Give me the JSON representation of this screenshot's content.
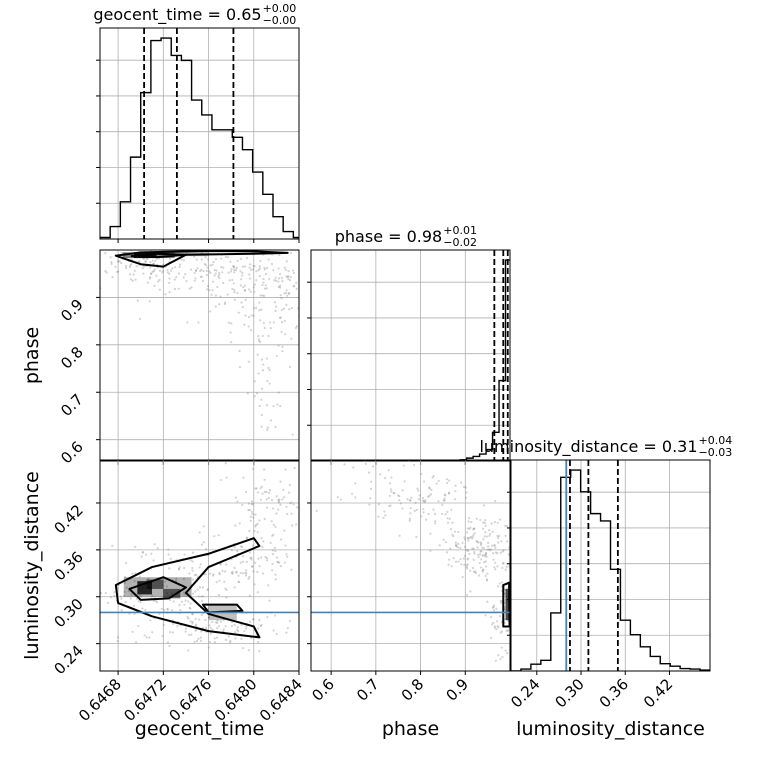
{
  "chart_data": {
    "type": "corner",
    "params": [
      "geocent_time",
      "phase",
      "luminosity_distance"
    ],
    "axis_labels": {
      "geocent_time": "geocent_time",
      "phase": "phase",
      "luminosity_distance": "luminosity_distance"
    },
    "ranges": {
      "geocent_time": [
        0.64664,
        0.6484
      ],
      "phase": [
        0.555,
        1.0
      ],
      "luminosity_distance": [
        0.205,
        0.475
      ]
    },
    "ticks": {
      "geocent_time": [
        0.6468,
        0.6472,
        0.6476,
        0.648,
        0.6484
      ],
      "phase": [
        0.6,
        0.7,
        0.8,
        0.9
      ],
      "luminosity_distance": [
        0.24,
        0.3,
        0.36,
        0.42
      ]
    },
    "tick_labels": {
      "geocent_time": [
        "0.6468",
        "0.6472",
        "0.6476",
        "0.6480",
        "0.6484"
      ],
      "phase": [
        "0.6",
        "0.7",
        "0.8",
        "0.9"
      ],
      "luminosity_distance": [
        "0.24",
        "0.30",
        "0.36",
        "0.42"
      ]
    },
    "titles": [
      {
        "param": "geocent_time",
        "name": "geocent_time",
        "value": "0.65",
        "plus": "+0.00",
        "minus": "−0.00"
      },
      {
        "param": "phase",
        "name": "phase",
        "value": "0.98",
        "plus": "+0.01",
        "minus": "−0.02"
      },
      {
        "param": "luminosity_distance",
        "name": "luminosity_distance",
        "value": "0.31",
        "plus": "+0.04",
        "minus": "−0.03"
      }
    ],
    "quantiles": {
      "geocent_time": [
        0.64703,
        0.64732,
        0.64782
      ],
      "phase": [
        0.965,
        0.985,
        0.995
      ],
      "luminosity_distance": [
        0.285,
        0.31,
        0.35
      ]
    },
    "truth": {
      "luminosity_distance": 0.28
    },
    "histograms": {
      "geocent_time": {
        "edges": [
          0.64664,
          0.64673,
          0.64682,
          0.64691,
          0.647,
          0.64709,
          0.64718,
          0.64727,
          0.64736,
          0.64745,
          0.64754,
          0.64763,
          0.64772,
          0.64781,
          0.6479,
          0.64799,
          0.64808,
          0.64817,
          0.64826,
          0.64835,
          0.64844
        ],
        "counts": [
          0.3,
          2.5,
          7.5,
          16.5,
          29.5,
          40.0,
          40.5,
          37.0,
          36.0,
          28.0,
          25.0,
          22.0,
          22.0,
          20.5,
          18.0,
          13.5,
          9.0,
          4.5,
          1.5,
          0.3
        ]
      },
      "phase": {
        "edges": [
          0.555,
          0.5695,
          0.584,
          0.5985,
          0.613,
          0.6275,
          0.642,
          0.6565,
          0.671,
          0.6855,
          0.7,
          0.7145,
          0.729,
          0.7435,
          0.758,
          0.7725,
          0.787,
          0.8015,
          0.816,
          0.8305,
          0.845,
          0.8595,
          0.874,
          0.8885,
          0.903,
          0.9175,
          0.932,
          0.9465,
          0.961,
          0.9755,
          0.99,
          1.0
        ],
        "counts": [
          0,
          0,
          0,
          0,
          0,
          0,
          0,
          0,
          0,
          0,
          0,
          0,
          0,
          0,
          0,
          0,
          0,
          0,
          0,
          0,
          0,
          0,
          0,
          0.2,
          0.5,
          0.8,
          1.2,
          2.0,
          5.0,
          14.0,
          35.0
        ]
      },
      "luminosity_distance": {
        "edges": [
          0.205,
          0.2185,
          0.232,
          0.2455,
          0.259,
          0.2725,
          0.286,
          0.2995,
          0.313,
          0.3265,
          0.34,
          0.3535,
          0.367,
          0.3805,
          0.394,
          0.4075,
          0.421,
          0.4345,
          0.448,
          0.4615,
          0.475
        ],
        "counts": [
          0,
          0.4,
          1.4,
          2.2,
          12.0,
          40.0,
          41.5,
          37.0,
          32.5,
          31.0,
          21.0,
          10.5,
          7.5,
          5.0,
          3.0,
          1.5,
          1.0,
          0.5,
          0.4,
          0.2
        ]
      }
    },
    "contours": {
      "geocent_time_phase": [
        [
          [
            0.64678,
            0.988
          ],
          [
            0.647,
            0.995
          ],
          [
            0.6476,
            0.998
          ],
          [
            0.648,
            0.997
          ],
          [
            0.6483,
            0.994
          ],
          [
            0.648,
            0.992
          ],
          [
            0.6474,
            0.99
          ],
          [
            0.6472,
            0.965
          ],
          [
            0.647,
            0.97
          ],
          [
            0.6469,
            0.978
          ],
          [
            0.64678,
            0.988
          ]
        ],
        [
          [
            0.64692,
            0.987
          ],
          [
            0.64715,
            0.992
          ],
          [
            0.6474,
            0.99
          ],
          [
            0.64715,
            0.985
          ],
          [
            0.64692,
            0.987
          ]
        ]
      ],
      "geocent_time_luminosity_distance": [
        [
          [
            0.64678,
            0.315
          ],
          [
            0.6471,
            0.338
          ],
          [
            0.6476,
            0.355
          ],
          [
            0.648,
            0.375
          ],
          [
            0.64805,
            0.365
          ],
          [
            0.6476,
            0.338
          ],
          [
            0.6474,
            0.305
          ],
          [
            0.6476,
            0.278
          ],
          [
            0.648,
            0.262
          ],
          [
            0.64805,
            0.248
          ],
          [
            0.6476,
            0.256
          ],
          [
            0.6471,
            0.275
          ],
          [
            0.6468,
            0.292
          ],
          [
            0.64678,
            0.315
          ]
        ],
        [
          [
            0.6469,
            0.31
          ],
          [
            0.6472,
            0.325
          ],
          [
            0.6474,
            0.312
          ],
          [
            0.64725,
            0.298
          ],
          [
            0.647,
            0.296
          ],
          [
            0.6469,
            0.31
          ]
        ],
        [
          [
            0.64755,
            0.29
          ],
          [
            0.64785,
            0.29
          ],
          [
            0.6479,
            0.282
          ],
          [
            0.6476,
            0.28
          ],
          [
            0.64755,
            0.29
          ]
        ]
      ],
      "phase_luminosity_distance": [
        [
          [
            0.985,
            0.315
          ],
          [
            0.998,
            0.318
          ],
          [
            0.999,
            0.262
          ],
          [
            0.985,
            0.262
          ],
          [
            0.985,
            0.315
          ]
        ]
      ]
    },
    "density_blocks": {
      "geocent_time_phase": [
        [
          0.64694,
          0.983,
          0.64714,
          0.995,
          0.9
        ],
        [
          0.64684,
          0.983,
          0.6473,
          0.995,
          0.5
        ],
        [
          0.6473,
          0.987,
          0.6476,
          0.995,
          0.25
        ]
      ],
      "geocent_time_luminosity_distance": [
        [
          0.64697,
          0.303,
          0.6471,
          0.32,
          0.8
        ],
        [
          0.64705,
          0.31,
          0.6472,
          0.322,
          0.55
        ],
        [
          0.6472,
          0.298,
          0.64735,
          0.31,
          0.55
        ],
        [
          0.64685,
          0.3,
          0.64745,
          0.325,
          0.3
        ],
        [
          0.6476,
          0.27,
          0.64785,
          0.29,
          0.25
        ]
      ],
      "phase_luminosity_distance": [
        [
          0.99,
          0.27,
          1.0,
          0.31,
          0.7
        ]
      ]
    },
    "scatter_clouds": {
      "geocent_time_phase": [
        [
          0.647,
          0.975,
          0.0003,
          0.02,
          120
        ],
        [
          0.64775,
          0.94,
          0.0004,
          0.03,
          180
        ],
        [
          0.6481,
          0.88,
          0.0002,
          0.06,
          90
        ],
        [
          0.6481,
          0.75,
          0.0001,
          0.08,
          40
        ]
      ],
      "geocent_time_luminosity_distance": [
        [
          0.6476,
          0.34,
          0.0004,
          0.02,
          140
        ],
        [
          0.6481,
          0.41,
          0.0002,
          0.04,
          120
        ],
        [
          0.6476,
          0.26,
          0.0003,
          0.015,
          140
        ],
        [
          0.6471,
          0.3,
          0.0003,
          0.012,
          80
        ]
      ],
      "phase_luminosity_distance": [
        [
          0.93,
          0.36,
          0.04,
          0.02,
          160
        ],
        [
          0.82,
          0.42,
          0.06,
          0.02,
          90
        ],
        [
          0.98,
          0.3,
          0.015,
          0.04,
          90
        ],
        [
          0.7,
          0.45,
          0.05,
          0.02,
          30
        ]
      ]
    },
    "colors": {
      "line": "#000000",
      "truth": "#4682b4",
      "grid": "#b0b0b0",
      "scatter": "#808080"
    },
    "grid": true
  }
}
